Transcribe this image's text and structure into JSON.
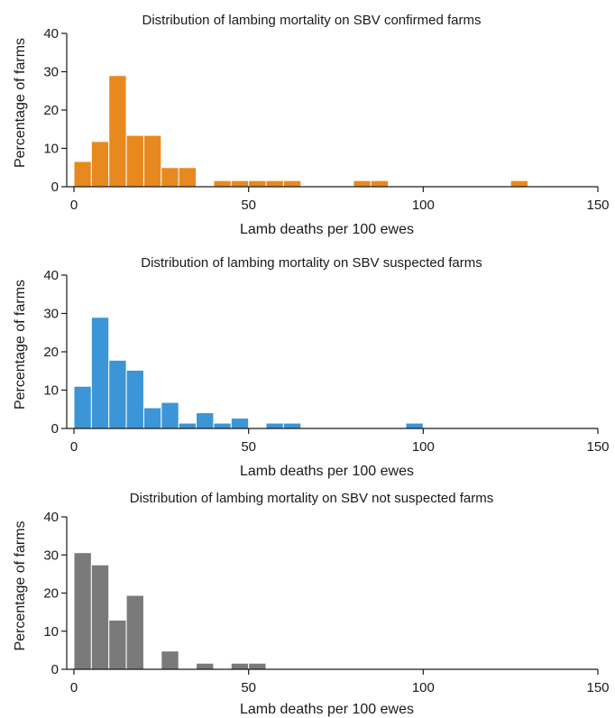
{
  "chart_data": [
    {
      "type": "bar",
      "title": "Distribution of lambing mortality on SBV confirmed farms",
      "xlabel": "Lamb deaths per 100 ewes",
      "ylabel": "Percentage of farms",
      "xlim": [
        0,
        150
      ],
      "ylim": [
        0,
        40
      ],
      "xticks": [
        0,
        50,
        100,
        150
      ],
      "yticks": [
        0,
        10,
        20,
        30,
        40
      ],
      "bin_width": 5,
      "color": "#e8891f",
      "bins": [
        {
          "x0": 0,
          "x1": 5,
          "value": 6.6
        },
        {
          "x0": 5,
          "x1": 10,
          "value": 11.8
        },
        {
          "x0": 10,
          "x1": 15,
          "value": 29
        },
        {
          "x0": 15,
          "x1": 20,
          "value": 13.4
        },
        {
          "x0": 20,
          "x1": 25,
          "value": 13.4
        },
        {
          "x0": 25,
          "x1": 30,
          "value": 5
        },
        {
          "x0": 30,
          "x1": 35,
          "value": 5
        },
        {
          "x0": 40,
          "x1": 45,
          "value": 1.6
        },
        {
          "x0": 45,
          "x1": 50,
          "value": 1.6
        },
        {
          "x0": 50,
          "x1": 55,
          "value": 1.6
        },
        {
          "x0": 55,
          "x1": 60,
          "value": 1.6
        },
        {
          "x0": 60,
          "x1": 65,
          "value": 1.6
        },
        {
          "x0": 80,
          "x1": 85,
          "value": 1.6
        },
        {
          "x0": 85,
          "x1": 90,
          "value": 1.6
        },
        {
          "x0": 125,
          "x1": 130,
          "value": 1.6
        }
      ]
    },
    {
      "type": "bar",
      "title": "Distribution of lambing mortality on SBV suspected farms",
      "xlabel": "Lamb deaths per 100 ewes",
      "ylabel": "Percentage of farms",
      "xlim": [
        0,
        150
      ],
      "ylim": [
        0,
        40
      ],
      "xticks": [
        0,
        50,
        100,
        150
      ],
      "yticks": [
        0,
        10,
        20,
        30,
        40
      ],
      "bin_width": 5,
      "color": "#3c95d6",
      "bins": [
        {
          "x0": 0,
          "x1": 5,
          "value": 11
        },
        {
          "x0": 5,
          "x1": 10,
          "value": 29
        },
        {
          "x0": 10,
          "x1": 15,
          "value": 17.8
        },
        {
          "x0": 15,
          "x1": 20,
          "value": 15.2
        },
        {
          "x0": 20,
          "x1": 25,
          "value": 5.4
        },
        {
          "x0": 25,
          "x1": 30,
          "value": 6.8
        },
        {
          "x0": 30,
          "x1": 35,
          "value": 1.4
        },
        {
          "x0": 35,
          "x1": 40,
          "value": 4.1
        },
        {
          "x0": 40,
          "x1": 45,
          "value": 1.4
        },
        {
          "x0": 45,
          "x1": 50,
          "value": 2.7
        },
        {
          "x0": 55,
          "x1": 60,
          "value": 1.4
        },
        {
          "x0": 60,
          "x1": 65,
          "value": 1.4
        },
        {
          "x0": 95,
          "x1": 100,
          "value": 1.4
        }
      ]
    },
    {
      "type": "bar",
      "title": "Distribution of lambing mortality on SBV not suspected farms",
      "xlabel": "Lamb deaths per 100 ewes",
      "ylabel": "Percentage of farms",
      "xlim": [
        0,
        150
      ],
      "ylim": [
        0,
        40
      ],
      "xticks": [
        0,
        50,
        100,
        150
      ],
      "yticks": [
        0,
        10,
        20,
        30,
        40
      ],
      "bin_width": 5,
      "color": "#7a7a7a",
      "bins": [
        {
          "x0": 0,
          "x1": 5,
          "value": 30.6
        },
        {
          "x0": 5,
          "x1": 10,
          "value": 27.4
        },
        {
          "x0": 10,
          "x1": 15,
          "value": 12.9
        },
        {
          "x0": 15,
          "x1": 20,
          "value": 19.4
        },
        {
          "x0": 25,
          "x1": 30,
          "value": 4.8
        },
        {
          "x0": 35,
          "x1": 40,
          "value": 1.6
        },
        {
          "x0": 45,
          "x1": 50,
          "value": 1.6
        },
        {
          "x0": 50,
          "x1": 55,
          "value": 1.6
        }
      ]
    }
  ]
}
